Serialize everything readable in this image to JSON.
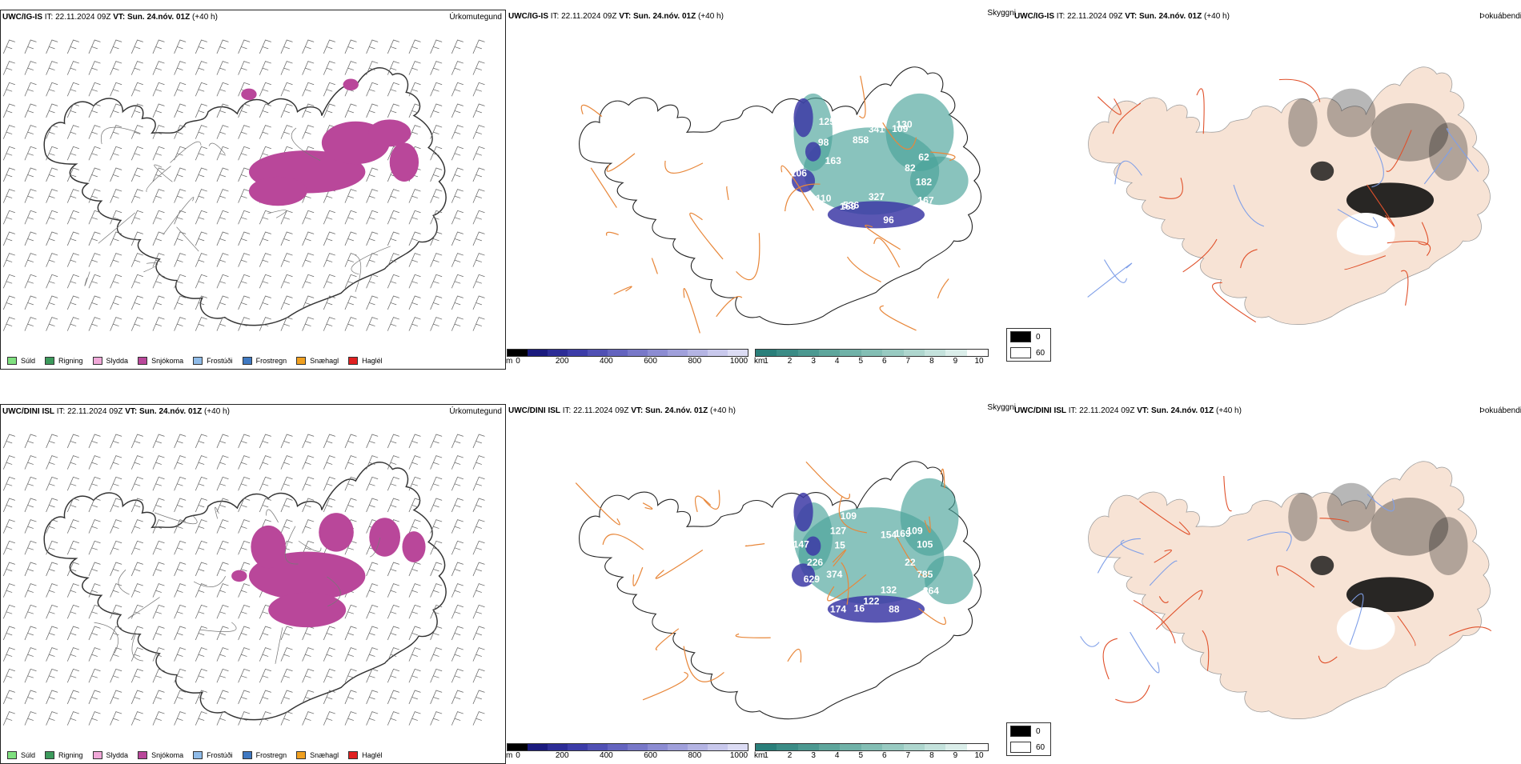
{
  "rows": [
    {
      "model": "UWC/IG-IS",
      "it_label": "IT:",
      "it_value": "22.11.2024 09Z",
      "vt_label": "VT:",
      "vt_value": "Sun. 24.nóv. 01Z",
      "lead": "(+40 h)",
      "cloudbase_labels": [
        "82",
        "182",
        "167",
        "96",
        "327",
        "536",
        "169",
        "110",
        "106",
        "163",
        "98",
        "125",
        "858",
        "341",
        "130",
        "109",
        "62"
      ]
    },
    {
      "model": "UWC/DINI ISL",
      "it_label": "IT:",
      "it_value": "22.11.2024 09Z",
      "vt_label": "VT:",
      "vt_value": "Sun. 24.nóv. 01Z",
      "lead": "(+40 h)",
      "cloudbase_labels": [
        "22",
        "785",
        "264",
        "88",
        "132",
        "122",
        "16",
        "174",
        "629",
        "374",
        "226",
        "147",
        "15",
        "127",
        "109",
        "164",
        "154",
        "109",
        "169",
        "105"
      ]
    }
  ],
  "fields": {
    "precip_type": "Úrkomutegund",
    "cloud": "Skyggni",
    "fog": "Þokuábendi"
  },
  "precip_legend": [
    {
      "label": "Súld",
      "color": "#7fe07f"
    },
    {
      "label": "Rigning",
      "color": "#3c9a5c"
    },
    {
      "label": "Slydda",
      "color": "#f0a8d8"
    },
    {
      "label": "Snjókoma",
      "color": "#b9479a"
    },
    {
      "label": "Frostúði",
      "color": "#8fbbe8"
    },
    {
      "label": "Frostregn",
      "color": "#3f79c2"
    },
    {
      "label": "Snæhagl",
      "color": "#f0a020"
    },
    {
      "label": "Haglél",
      "color": "#e02020"
    }
  ],
  "height_bar": {
    "unit": "m",
    "ticks": [
      "0",
      "200",
      "400",
      "600",
      "800",
      "1000"
    ],
    "colors": [
      "#000000",
      "#1a1a7e",
      "#2c2c96",
      "#3c3ca8",
      "#5050b4",
      "#6464bf",
      "#7878c8",
      "#8c8cd2",
      "#a0a0db",
      "#b4b4e3",
      "#c8c8ec",
      "#dcdcf4"
    ]
  },
  "vis_bar": {
    "unit": "km",
    "ticks": [
      "1",
      "2",
      "3",
      "4",
      "5",
      "6",
      "7",
      "8",
      "9",
      "10"
    ],
    "colors": [
      "#2a7f7a",
      "#3b8c86",
      "#4c9991",
      "#5ea69c",
      "#70b2a8",
      "#83beb4",
      "#98cac1",
      "#aed6ce",
      "#c4e2dc",
      "#dbeeea",
      "#ffffff"
    ]
  },
  "bw_scale": [
    {
      "label": "0",
      "color": "#000000"
    },
    {
      "label": "60",
      "color": "#ffffff"
    }
  ],
  "colors": {
    "snow": "#b9479a",
    "land_fog": "#f7e3d5",
    "roads": "#e8873a",
    "roads_red": "#e0502a",
    "rivers": "#7f9fe8",
    "lowcloud": "#3d3aa6",
    "cloud_green": "#4aa39a"
  }
}
